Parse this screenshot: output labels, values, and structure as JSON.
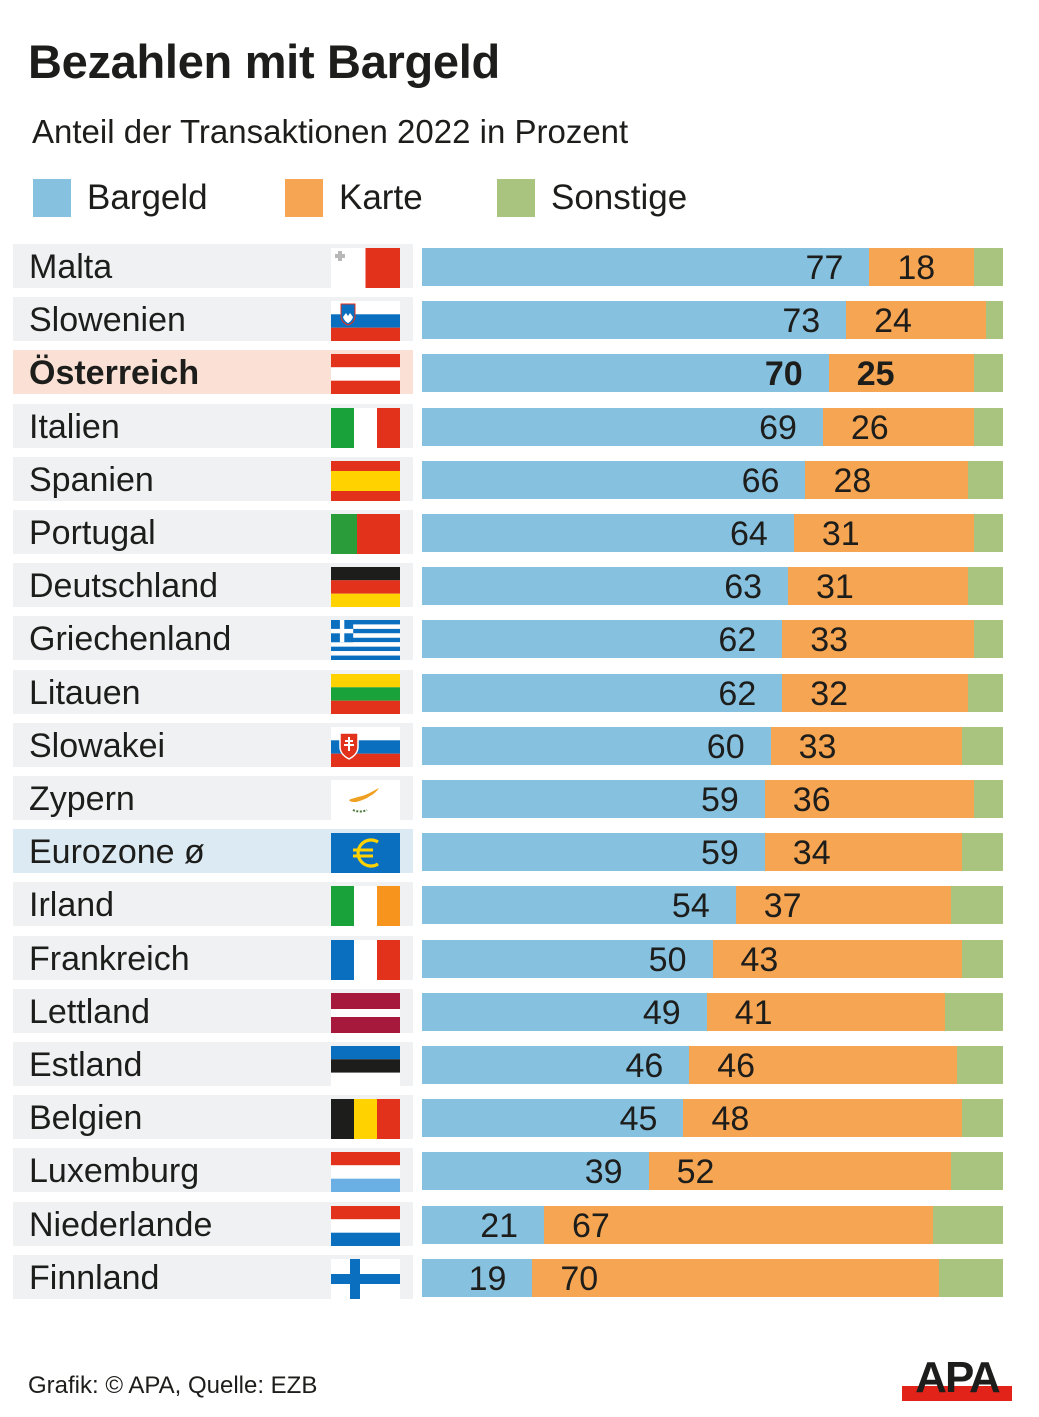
{
  "title": "Bezahlen mit Bargeld",
  "subtitle": "Anteil der Transaktionen 2022 in Prozent",
  "legend": [
    {
      "label": "Bargeld",
      "color": "#86c1e0"
    },
    {
      "label": "Karte",
      "color": "#f6a552"
    },
    {
      "label": "Sonstige",
      "color": "#a8c47f"
    }
  ],
  "footer": {
    "credit": "Grafik: © APA, Quelle: EZB",
    "logo_text": "APA",
    "logo_bar_color": "#e2231a"
  },
  "chart_data": {
    "type": "bar",
    "orientation": "horizontal",
    "stacked": true,
    "title": "Bezahlen mit Bargeld",
    "subtitle": "Anteil der Transaktionen 2022 in Prozent",
    "xlabel": "",
    "ylabel": "",
    "xlim": [
      0,
      100
    ],
    "grid": false,
    "legend_position": "top-left",
    "categories": [
      "Malta",
      "Slowenien",
      "Österreich",
      "Italien",
      "Spanien",
      "Portugal",
      "Deutschland",
      "Griechenland",
      "Litauen",
      "Slowakei",
      "Zypern",
      "Eurozone ø",
      "Irland",
      "Frankreich",
      "Lettland",
      "Estland",
      "Belgien",
      "Luxemburg",
      "Niederlande",
      "Finnland"
    ],
    "highlight": [
      "Österreich"
    ],
    "average_category": "Eurozone ø",
    "flags": [
      "malta",
      "slovenia",
      "austria",
      "italy",
      "spain",
      "portugal",
      "germany",
      "greece",
      "lithuania",
      "slovakia",
      "cyprus",
      "euro",
      "ireland",
      "france",
      "latvia",
      "estonia",
      "belgium",
      "luxembourg",
      "netherlands",
      "finland"
    ],
    "series": [
      {
        "name": "Bargeld",
        "color": "#86c1e0",
        "values": [
          77,
          73,
          70,
          69,
          66,
          64,
          63,
          62,
          62,
          60,
          59,
          59,
          54,
          50,
          49,
          46,
          45,
          39,
          21,
          19
        ]
      },
      {
        "name": "Karte",
        "color": "#f6a552",
        "values": [
          18,
          24,
          25,
          26,
          28,
          31,
          31,
          33,
          32,
          33,
          36,
          34,
          37,
          43,
          41,
          46,
          48,
          52,
          67,
          70
        ]
      },
      {
        "name": "Sonstige",
        "color": "#a8c47f",
        "values": [
          5,
          3,
          5,
          5,
          6,
          5,
          6,
          5,
          6,
          7,
          5,
          7,
          9,
          7,
          10,
          8,
          7,
          9,
          12,
          11
        ]
      }
    ],
    "data_labels": [
      "Bargeld",
      "Karte"
    ]
  }
}
